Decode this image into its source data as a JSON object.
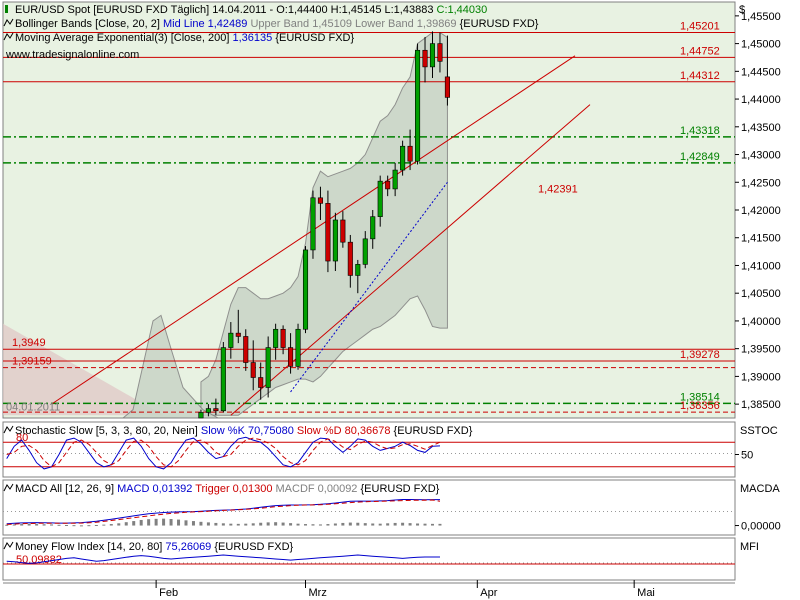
{
  "chart_data": {
    "type": "candlestick",
    "currency_symbol": "$",
    "main": {
      "header_lines": [
        {
          "icon": "bar-chart-icon",
          "parts": [
            {
              "text": "EUR/USD Spot [EURUSD FXD  Täglich] 14.04.2011 - O:1,44400 H:1,45145 L:1,43883 ",
              "color": "#000000"
            },
            {
              "text": "C:1,44030",
              "color": "#008000"
            }
          ]
        },
        {
          "icon": "line-icon",
          "parts": [
            {
              "text": "Bollinger Bands [Close, 20, 2] ",
              "color": "#000000"
            },
            {
              "text": "Mid Line 1,42489 ",
              "color": "#0000cc"
            },
            {
              "text": "Upper Band 1,45109 Lower Band 1,39869 ",
              "color": "#808080"
            },
            {
              "text": "{EURUSD FXD}",
              "color": "#000000"
            }
          ]
        },
        {
          "icon": "line-icon",
          "parts": [
            {
              "text": "Moving Average Exponential(3) [Close, 200] ",
              "color": "#000000"
            },
            {
              "text": "1,36135 ",
              "color": "#0000cc"
            },
            {
              "text": "{EURUSD FXD}",
              "color": "#000000"
            }
          ]
        }
      ],
      "watermark": "www.tradesignalonline.com",
      "ylim": [
        1.3825,
        1.4575
      ],
      "yticks": [
        "1,45500",
        "1,45000",
        "1,44500",
        "1,44000",
        "1,43500",
        "1,43000",
        "1,42500",
        "1,42000",
        "1,41500",
        "1,41000",
        "1,40500",
        "1,40000",
        "1,39500",
        "1,39000",
        "1,38500"
      ],
      "ytick_values": [
        1.455,
        1.45,
        1.445,
        1.44,
        1.435,
        1.43,
        1.425,
        1.42,
        1.415,
        1.41,
        1.405,
        1.4,
        1.395,
        1.39,
        1.385
      ],
      "hlines": [
        {
          "value": 1.45201,
          "label": "1,45201",
          "color": "#cc0000",
          "style": "solid",
          "label_side": "right"
        },
        {
          "value": 1.44752,
          "label": "1,44752",
          "color": "#cc0000",
          "style": "solid",
          "label_side": "right"
        },
        {
          "value": 1.44312,
          "label": "1,44312",
          "color": "#cc0000",
          "style": "solid",
          "label_side": "right"
        },
        {
          "value": 1.43318,
          "label": "1,43318",
          "color": "#008000",
          "style": "dashdot",
          "label_side": "right"
        },
        {
          "value": 1.42849,
          "label": "1,42849",
          "color": "#008000",
          "style": "dashdot",
          "label_side": "right"
        },
        {
          "value": 1.39278,
          "label": "1,39278",
          "color": "#cc0000",
          "style": "solid",
          "label_side": "right"
        },
        {
          "value": 1.3949,
          "label": "1,3949",
          "color": "#cc0000",
          "style": "solid",
          "label_side": "left"
        },
        {
          "value": 1.39159,
          "label": "1,39159",
          "color": "#cc0000",
          "style": "dashed",
          "label_side": "left"
        },
        {
          "value": 1.38514,
          "label": "1,38514",
          "color": "#008000",
          "style": "dashdot",
          "label_side": "right"
        },
        {
          "value": 1.38356,
          "label": "1,38356",
          "color": "#cc0000",
          "style": "dashed",
          "label_side": "right"
        }
      ],
      "annotations": [
        {
          "text": "1,42391",
          "value": 1.42391,
          "color": "#cc0000"
        },
        {
          "text": "04.01.2011",
          "value": 1.3846,
          "color": "#808080"
        }
      ],
      "candles": [
        [
          1.3825,
          1.384,
          1.3825,
          1.3835
        ],
        [
          1.3835,
          1.385,
          1.3828,
          1.3842
        ],
        [
          1.3842,
          1.386,
          1.383,
          1.3838
        ],
        [
          1.3838,
          1.3962,
          1.3835,
          1.3952
        ],
        [
          1.3952,
          1.3998,
          1.3932,
          1.3978
        ],
        [
          1.3978,
          1.402,
          1.396,
          1.3972
        ],
        [
          1.3972,
          1.3985,
          1.391,
          1.3925
        ],
        [
          1.3925,
          1.3965,
          1.3875,
          1.3898
        ],
        [
          1.3898,
          1.3925,
          1.3858,
          1.388
        ],
        [
          1.388,
          1.3972,
          1.3862,
          1.3952
        ],
        [
          1.3952,
          1.3995,
          1.393,
          1.3985
        ],
        [
          1.3985,
          1.3992,
          1.394,
          1.3952
        ],
        [
          1.3952,
          1.3978,
          1.3905,
          1.3918
        ],
        [
          1.3918,
          1.3995,
          1.3912,
          1.3985
        ],
        [
          1.3985,
          1.4135,
          1.3978,
          1.4128
        ],
        [
          1.4128,
          1.4235,
          1.4112,
          1.4222
        ],
        [
          1.4222,
          1.4242,
          1.4182,
          1.4212
        ],
        [
          1.4212,
          1.4235,
          1.4088,
          1.4108
        ],
        [
          1.4108,
          1.4195,
          1.409,
          1.4182
        ],
        [
          1.4182,
          1.4198,
          1.4132,
          1.4142
        ],
        [
          1.4142,
          1.4155,
          1.406,
          1.4082
        ],
        [
          1.4082,
          1.411,
          1.405,
          1.4102
        ],
        [
          1.4102,
          1.4162,
          1.4095,
          1.4148
        ],
        [
          1.4148,
          1.42,
          1.413,
          1.4188
        ],
        [
          1.4188,
          1.4262,
          1.417,
          1.4252
        ],
        [
          1.4252,
          1.4262,
          1.4225,
          1.4238
        ],
        [
          1.4238,
          1.4285,
          1.4225,
          1.4272
        ],
        [
          1.4272,
          1.4325,
          1.4262,
          1.4315
        ],
        [
          1.4315,
          1.4345,
          1.4272,
          1.4288
        ],
        [
          1.4288,
          1.45,
          1.4282,
          1.4488
        ],
        [
          1.4488,
          1.4512,
          1.443,
          1.4458
        ],
        [
          1.4458,
          1.4522,
          1.4438,
          1.45
        ],
        [
          1.45,
          1.452,
          1.4448,
          1.4468
        ],
        [
          1.444,
          1.45145,
          1.43883,
          1.4403
        ]
      ],
      "x_start_index": 26
    },
    "panels": [
      {
        "id": "stochastic",
        "title_parts": [
          {
            "text": "Stochastic Slow [5, 3, 3, 80, 20, Nein] ",
            "color": "#000000"
          },
          {
            "text": "Slow %K 70,75080 ",
            "color": "#0000cc"
          },
          {
            "text": "Slow %D 80,36678 ",
            "color": "#cc0000"
          },
          {
            "text": "{EURUSD FXD}",
            "color": "#000000"
          }
        ],
        "right_label": "SSTOC",
        "ylim": [
          0,
          100
        ],
        "yticks": [
          "50"
        ],
        "ytick_values": [
          50
        ],
        "level_lines": [
          {
            "value": 80,
            "label": "80",
            "color": "#cc0000",
            "style": "solid"
          },
          {
            "value": 20,
            "color": "#cc0000",
            "style": "solid"
          }
        ],
        "series": [
          {
            "name": "Slow %K",
            "color": "#0000cc",
            "style": "solid",
            "values": [
              40,
              70,
              85,
              60,
              30,
              15,
              20,
              50,
              85,
              90,
              80,
              55,
              30,
              20,
              25,
              55,
              85,
              90,
              70,
              40,
              20,
              15,
              30,
              60,
              85,
              90,
              75,
              55,
              40,
              45,
              70,
              88,
              92,
              85,
              80,
              65,
              45,
              25,
              20,
              30,
              55,
              80,
              90,
              88,
              70,
              55,
              70,
              88,
              85,
              70,
              60,
              65,
              70,
              80,
              72,
              60,
              55,
              70,
              71
            ]
          },
          {
            "name": "Slow %D",
            "color": "#cc0000",
            "style": "dashed",
            "values": [
              50,
              55,
              70,
              72,
              60,
              35,
              20,
              30,
              55,
              80,
              85,
              75,
              55,
              35,
              25,
              35,
              60,
              82,
              85,
              70,
              45,
              25,
              20,
              35,
              60,
              82,
              85,
              75,
              55,
              45,
              50,
              70,
              85,
              90,
              86,
              78,
              65,
              45,
              30,
              25,
              35,
              60,
              80,
              88,
              82,
              68,
              62,
              75,
              83,
              80,
              70,
              64,
              66,
              74,
              76,
              70,
              63,
              72,
              80
            ]
          }
        ]
      },
      {
        "id": "macd",
        "title_parts": [
          {
            "text": "MACD All [12, 26, 9] ",
            "color": "#000000"
          },
          {
            "text": "MACD 0,01392 ",
            "color": "#0000cc"
          },
          {
            "text": "Trigger 0,01300 ",
            "color": "#cc0000"
          },
          {
            "text": "MACDF 0,00092 ",
            "color": "#808080"
          },
          {
            "text": "{EURUSD FXD}",
            "color": "#000000"
          }
        ],
        "right_label": "MACDA",
        "ylim": [
          -0.004,
          0.018
        ],
        "yticks": [
          "0,00000"
        ],
        "ytick_values": [
          0
        ],
        "level_lines": [],
        "histogram_color": "#808080",
        "histogram": [
          0.0004,
          0.0006,
          0.0008,
          0.0009,
          0.0008,
          0.0007,
          0.0006,
          0.0004,
          0.0003,
          0.0002,
          0.0001,
          0.0002,
          0.0003,
          0.0005,
          0.0008,
          0.0012,
          0.0018,
          0.0024,
          0.003,
          0.0034,
          0.0036,
          0.0037,
          0.0035,
          0.0032,
          0.0028,
          0.0024,
          0.002,
          0.0017,
          0.0014,
          0.0012,
          0.001,
          0.0009,
          0.001,
          0.0012,
          0.0015,
          0.0017,
          0.0018,
          0.0016,
          0.0013,
          0.001,
          0.0008,
          0.0007,
          0.0006,
          0.0008,
          0.0011,
          0.0014,
          0.0016,
          0.0015,
          0.0013,
          0.0011,
          0.001,
          0.0012,
          0.0014,
          0.0015,
          0.0013,
          0.0011,
          0.001,
          0.0009,
          0.0009
        ],
        "series": [
          {
            "name": "MACD",
            "color": "#0000cc",
            "style": "solid",
            "values": [
              0.001,
              0.0012,
              0.0014,
              0.0015,
              0.0016,
              0.0015,
              0.0014,
              0.0013,
              0.0013,
              0.0014,
              0.0016,
              0.0019,
              0.0023,
              0.0028,
              0.0034,
              0.004,
              0.0046,
              0.0052,
              0.0058,
              0.0063,
              0.0067,
              0.007,
              0.0072,
              0.0073,
              0.0074,
              0.0075,
              0.0077,
              0.0079,
              0.0081,
              0.0083,
              0.0084,
              0.0086,
              0.0089,
              0.0093,
              0.0098,
              0.0103,
              0.0107,
              0.0109,
              0.011,
              0.011,
              0.0111,
              0.0112,
              0.0114,
              0.0117,
              0.0121,
              0.0126,
              0.013,
              0.0131,
              0.0131,
              0.0131,
              0.0132,
              0.0134,
              0.0137,
              0.014,
              0.014,
              0.0139,
              0.0138,
              0.0139,
              0.0139
            ]
          },
          {
            "name": "Trigger",
            "color": "#cc0000",
            "style": "dashed",
            "values": [
              0.0006,
              0.0008,
              0.001,
              0.0011,
              0.0012,
              0.0012,
              0.0012,
              0.0012,
              0.0012,
              0.0012,
              0.0013,
              0.0015,
              0.0018,
              0.0022,
              0.0027,
              0.0032,
              0.0037,
              0.0042,
              0.0047,
              0.0052,
              0.0057,
              0.0061,
              0.0065,
              0.0068,
              0.0071,
              0.0073,
              0.0075,
              0.0077,
              0.0079,
              0.0081,
              0.0083,
              0.0085,
              0.0087,
              0.009,
              0.0093,
              0.0097,
              0.0101,
              0.0104,
              0.0107,
              0.0109,
              0.011,
              0.0111,
              0.0112,
              0.0114,
              0.0117,
              0.012,
              0.0123,
              0.0126,
              0.0128,
              0.0129,
              0.013,
              0.0131,
              0.0132,
              0.0134,
              0.0135,
              0.0136,
              0.0136,
              0.0137,
              0.013
            ]
          }
        ]
      },
      {
        "id": "mfi",
        "title_parts": [
          {
            "text": "Money Flow Index [14, 20, 80] ",
            "color": "#000000"
          },
          {
            "text": "75,26069 ",
            "color": "#0000cc"
          },
          {
            "text": "{EURUSD FXD}",
            "color": "#000000"
          }
        ],
        "right_label": "MFI",
        "ylim": [
          0,
          100
        ],
        "yticks": [],
        "ytick_values": [],
        "level_lines": [
          {
            "value": 50.09882,
            "label": "50,09882",
            "color": "#cc0000",
            "style": "solid"
          }
        ],
        "series": [
          {
            "name": "MFI",
            "color": "#0000cc",
            "style": "solid",
            "values": [
              60,
              58,
              55,
              52,
              54,
              58,
              62,
              66,
              70,
              72,
              68,
              64,
              60,
              62,
              66,
              70,
              74,
              78,
              80,
              78,
              74,
              70,
              68,
              70,
              72,
              74,
              76,
              78,
              80,
              82,
              80,
              78,
              76,
              74,
              72,
              70,
              68,
              66,
              64,
              66,
              68,
              70,
              72,
              74,
              76,
              78,
              80,
              82,
              80,
              78,
              76,
              74,
              72,
              70,
              72,
              74,
              75,
              75,
              75
            ]
          }
        ]
      }
    ],
    "x_axis": {
      "labels": [
        {
          "text": "Feb",
          "index": 20
        },
        {
          "text": "Mrz",
          "index": 40
        },
        {
          "text": "Apr",
          "index": 63
        },
        {
          "text": "Mai",
          "index": 84
        }
      ],
      "total_slots": 98
    }
  }
}
